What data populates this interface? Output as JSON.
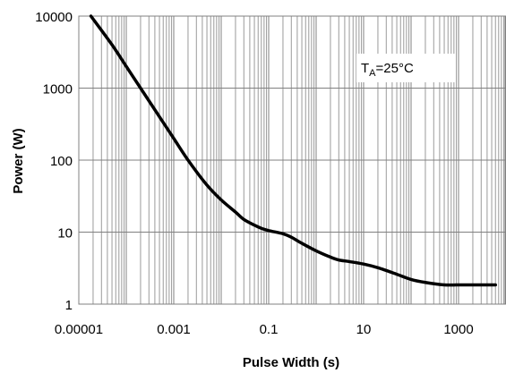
{
  "chart_data": {
    "type": "line",
    "xlabel": "Pulse Width (s)",
    "ylabel": "Power (W)",
    "x_scale": "log",
    "y_scale": "log",
    "xlim": [
      1e-05,
      10000
    ],
    "ylim": [
      1,
      10000
    ],
    "x_tick_labels": [
      "0.00001",
      "0.001",
      "0.1",
      "10",
      "1000"
    ],
    "y_tick_labels": [
      "1",
      "10",
      "100",
      "1000",
      "10000"
    ],
    "grid": true,
    "annotation": {
      "main": "T",
      "sub": "A",
      "rest": "=25°C"
    },
    "series": [
      {
        "x": [
          1.8e-05,
          5e-05,
          0.0001,
          0.0002,
          0.0005,
          0.001,
          0.002,
          0.005,
          0.01,
          0.02,
          0.03,
          0.05,
          0.07,
          0.1,
          0.2,
          0.3,
          0.5,
          1,
          2,
          3,
          5,
          10,
          20,
          50,
          100,
          200,
          500,
          1000,
          2000,
          6000
        ],
        "y": [
          10000,
          4000,
          2000,
          1000,
          400,
          200,
          100,
          45,
          28,
          19,
          15,
          12.5,
          11.3,
          10.5,
          9.5,
          8.5,
          7,
          5.5,
          4.5,
          4.1,
          3.9,
          3.6,
          3.2,
          2.6,
          2.2,
          2.0,
          1.85,
          1.85,
          1.85,
          1.85
        ]
      }
    ],
    "line_color": "#000000"
  }
}
